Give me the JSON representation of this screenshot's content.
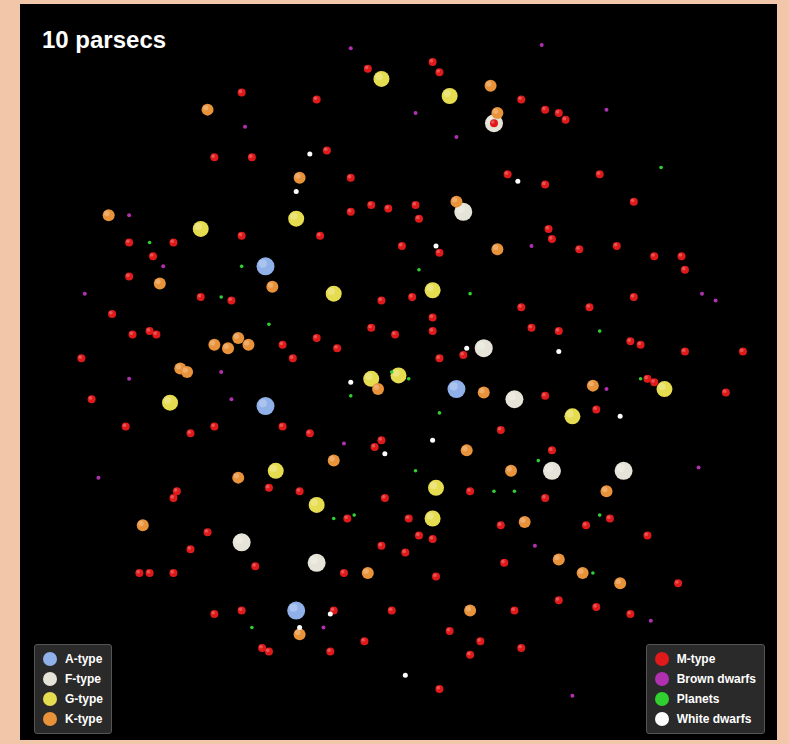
{
  "chart_data": {
    "type": "scatter",
    "title": "10 parsecs",
    "xlim": [
      -11.1,
      11.1
    ],
    "ylim": [
      -10.8,
      10.8
    ],
    "tick_labels": false,
    "grid": false,
    "legend": "bottom",
    "series": [
      {
        "name": "A-type",
        "color": "#8fb0e8",
        "marker": "circle",
        "x": [
          -3.9,
          -3.9,
          1.7,
          -3.0
        ],
        "y": [
          3.1,
          -1.0,
          -0.5,
          -7.0
        ]
      },
      {
        "name": "F-type",
        "color": "#e6e4d8",
        "marker": "circle",
        "x": [
          1.9,
          2.5,
          3.4,
          4.5,
          6.6,
          -4.6,
          -2.4,
          2.8
        ],
        "y": [
          4.7,
          0.7,
          -0.8,
          -2.9,
          -2.9,
          -5.0,
          -5.6,
          7.3
        ]
      },
      {
        "name": "G-type",
        "color": "#e6dc50",
        "marker": "circle",
        "x": [
          -0.5,
          1.5,
          -5.8,
          0.0,
          -0.8,
          1.0,
          -3.6,
          -2.4,
          5.1,
          -6.7,
          1.1,
          -1.9,
          -3.0,
          7.8,
          1.0
        ],
        "y": [
          8.6,
          8.1,
          4.2,
          -0.1,
          -0.2,
          2.4,
          -2.9,
          -3.9,
          -1.3,
          -0.9,
          -3.4,
          2.3,
          4.5,
          -0.5,
          -4.3
        ]
      },
      {
        "name": "K-type",
        "color": "#e8923a",
        "marker": "circle",
        "x": [
          -5.6,
          -8.5,
          2.7,
          2.9,
          1.7,
          -2.9,
          -7.0,
          -4.7,
          -4.4,
          -5.4,
          -6.4,
          -6.2,
          -3.7,
          -0.6,
          2.5,
          2.0,
          2.9,
          3.3,
          4.7,
          5.4,
          2.1,
          6.1,
          -2.9,
          -7.5,
          -1.9,
          -0.9,
          6.5,
          5.7,
          -4.7,
          3.7,
          -5.0
        ],
        "y": [
          7.7,
          4.6,
          8.4,
          7.6,
          5.0,
          5.7,
          2.6,
          1.0,
          0.8,
          0.8,
          0.1,
          0.0,
          2.5,
          -0.5,
          -0.6,
          -2.3,
          3.6,
          -2.9,
          -5.5,
          -5.9,
          -7.0,
          -3.5,
          -7.7,
          -4.5,
          -2.6,
          -5.9,
          -6.2,
          -0.4,
          -3.1,
          -4.4,
          0.7
        ]
      },
      {
        "name": "M-type",
        "color": "#e01a1a",
        "marker": "circle",
        "x": [
          -0.9,
          1.0,
          1.2,
          -4.6,
          -2.4,
          3.6,
          4.7,
          4.9,
          4.3,
          -4.3,
          -2.1,
          -5.4,
          -1.4,
          -0.8,
          -1.4,
          -0.3,
          0.5,
          0.6,
          3.2,
          4.3,
          5.9,
          6.9,
          -7.9,
          -6.6,
          -7.9,
          -7.2,
          -4.6,
          -2.3,
          0.1,
          1.2,
          4.4,
          4.5,
          5.3,
          6.9,
          7.5,
          8.3,
          8.4,
          6.4,
          -5.8,
          -4.9,
          -7.3,
          -7.8,
          -7.1,
          -8.4,
          -9.3,
          -9.0,
          -3.4,
          -3.1,
          -2.4,
          -1.8,
          -0.8,
          1.0,
          1.0,
          0.4,
          -0.5,
          -0.1,
          1.2,
          1.9,
          3.6,
          3.9,
          4.7,
          5.6,
          6.8,
          7.1,
          7.3,
          7.5,
          10.1,
          8.4,
          9.6,
          4.3,
          5.8,
          4.5,
          3.0,
          -0.5,
          -0.7,
          -2.6,
          -3.4,
          -5.4,
          -6.1,
          -8.0,
          -6.5,
          -6.6,
          -7.6,
          -7.3,
          -6.6,
          -3.8,
          -2.9,
          -1.5,
          -0.5,
          0.2,
          0.6,
          1.0,
          0.3,
          -0.4,
          2.1,
          3.0,
          4.3,
          5.5,
          6.2,
          7.3,
          8.2,
          4.7,
          5.8,
          6.8,
          3.4,
          3.6,
          2.4,
          1.2,
          -1.0,
          -0.2,
          -1.9,
          -4.0,
          -3.8,
          -5.4,
          -4.6,
          -6.1,
          -5.6,
          -4.2,
          -2.0,
          -1.6,
          1.5,
          2.1,
          3.1,
          1.1,
          2.8
        ],
        "y": [
          8.9,
          9.1,
          8.8,
          8.2,
          8.0,
          8.0,
          7.6,
          7.4,
          7.7,
          6.3,
          6.5,
          6.3,
          5.7,
          4.9,
          4.7,
          4.8,
          4.9,
          4.5,
          5.8,
          5.5,
          5.8,
          5.0,
          3.8,
          3.8,
          2.8,
          3.4,
          4.0,
          4.0,
          3.7,
          3.5,
          4.2,
          3.9,
          3.6,
          2.2,
          3.4,
          3.4,
          3.0,
          3.7,
          2.2,
          2.1,
          1.2,
          1.1,
          1.1,
          1.7,
          0.4,
          -0.8,
          0.8,
          0.4,
          1.0,
          0.7,
          1.3,
          1.6,
          1.2,
          2.2,
          2.1,
          1.1,
          0.4,
          0.5,
          1.9,
          1.3,
          1.2,
          1.9,
          0.9,
          0.8,
          -0.2,
          -0.3,
          0.6,
          0.6,
          -0.6,
          -0.7,
          -1.1,
          -2.3,
          -1.7,
          -2.0,
          -2.2,
          -1.8,
          -1.6,
          -1.6,
          -1.8,
          -1.6,
          -3.5,
          -3.7,
          -5.9,
          -5.9,
          -5.9,
          -3.4,
          -3.5,
          -4.3,
          -5.1,
          -5.3,
          -4.8,
          -4.9,
          -4.3,
          -3.7,
          -3.5,
          -4.5,
          -3.7,
          -4.5,
          -4.3,
          -4.8,
          -6.2,
          -6.7,
          -6.9,
          -7.1,
          -7.0,
          -8.1,
          -7.9,
          -9.3,
          -7.9,
          -7.0,
          -7.0,
          -8.1,
          -8.2,
          -7.1,
          -7.0,
          -5.2,
          -4.7,
          -5.7,
          -8.2,
          -5.9,
          -7.6,
          -8.3,
          -5.6,
          -6.0,
          7.3
        ]
      },
      {
        "name": "Brown dwarfs",
        "color": "#b030b0",
        "marker": "circle",
        "x": [
          -1.4,
          4.2,
          -7.9,
          -9.2,
          8.9,
          9.3,
          3.9,
          6.1,
          0.5,
          1.7,
          -4.5,
          -6.9,
          -8.8,
          -5.2,
          8.8,
          5.1,
          7.4,
          -7.9,
          -2.2,
          4.0,
          6.1,
          -1.6,
          -4.9
        ],
        "y": [
          9.5,
          9.6,
          4.6,
          2.3,
          2.3,
          2.1,
          3.7,
          7.7,
          7.6,
          6.9,
          7.2,
          3.1,
          -3.1,
          0.0,
          -2.8,
          -9.5,
          -7.3,
          -0.2,
          -7.5,
          -5.1,
          -0.5,
          -2.1,
          -0.8
        ]
      },
      {
        "name": "Planets",
        "color": "#30d030",
        "marker": "circle",
        "x": [
          7.7,
          -7.3,
          -4.6,
          0.6,
          2.1,
          -1.3,
          0.5,
          2.8,
          3.4,
          -4.3,
          5.7,
          7.1,
          -3.8,
          5.9,
          5.9,
          -5.2,
          -1.4,
          4.1,
          -0.2,
          0.3,
          -1.9,
          1.2
        ],
        "y": [
          6.0,
          3.8,
          3.1,
          3.0,
          2.3,
          -4.2,
          -2.9,
          -3.5,
          -3.5,
          -7.5,
          -5.9,
          -0.2,
          1.4,
          -4.2,
          1.2,
          2.2,
          -0.7,
          -2.6,
          0.0,
          -0.2,
          -4.3,
          -1.2
        ]
      },
      {
        "name": "White dwarfs",
        "color": "#ffffff",
        "marker": "circle",
        "x": [
          -2.6,
          -3.0,
          1.1,
          2.0,
          3.5,
          4.7,
          6.5,
          -1.4,
          1.0,
          -2.9,
          -2.0,
          0.2,
          -0.4
        ],
        "y": [
          6.4,
          5.3,
          3.7,
          0.7,
          5.6,
          0.6,
          -1.3,
          -0.3,
          -2.0,
          -7.5,
          -7.1,
          -8.9,
          -2.4
        ]
      }
    ]
  }
}
